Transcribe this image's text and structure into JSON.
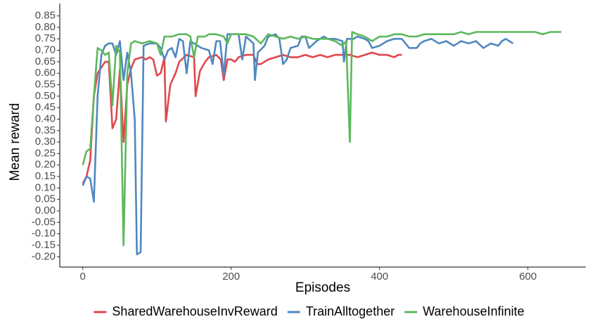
{
  "chart_data": {
    "type": "line",
    "x_label": "Episodes",
    "y_label": "Mean reward",
    "xlim": [
      -31,
      678
    ],
    "ylim": [
      -0.245,
      0.904
    ],
    "xticks": [
      0,
      200,
      400,
      600
    ],
    "yticks": [
      {
        "value": -0.2,
        "label": "-0.20"
      },
      {
        "value": -0.15,
        "label": "-0.15"
      },
      {
        "value": -0.1,
        "label": "-0.10"
      },
      -0.05,
      {
        "value": 0,
        "label": "0.00"
      },
      0.05,
      {
        "value": 0.1,
        "label": "0.10"
      },
      0.15,
      {
        "value": 0.2,
        "label": "0.20"
      },
      0.25,
      {
        "value": 0.3,
        "label": "0.30"
      },
      0.35,
      {
        "value": 0.4,
        "label": "0.40"
      },
      0.45,
      {
        "value": 0.5,
        "label": "0.50"
      },
      0.55,
      {
        "value": 0.6,
        "label": "0.60"
      },
      0.65,
      {
        "value": 0.7,
        "label": "0.70"
      },
      0.75,
      {
        "value": 0.8,
        "label": "0.80"
      },
      0.85
    ],
    "grid": false,
    "legend": "bottom",
    "series": [
      {
        "name": "SharedWarehouseInvReward",
        "color": "#e0474c",
        "x": [
          0,
          5,
          10,
          15,
          20,
          30,
          35,
          40,
          45,
          50,
          55,
          60,
          65,
          70,
          80,
          85,
          90,
          95,
          100,
          105,
          110,
          112,
          118,
          125,
          130,
          140,
          150,
          152,
          158,
          165,
          170,
          180,
          186,
          190,
          195,
          200,
          205,
          210,
          220,
          230,
          235,
          240,
          250,
          260,
          270,
          280,
          290,
          300,
          310,
          320,
          330,
          340,
          350,
          360,
          370,
          380,
          390,
          400,
          410,
          420,
          425,
          430
        ],
        "values": [
          0.12,
          0.15,
          0.22,
          0.5,
          0.6,
          0.65,
          0.65,
          0.36,
          0.4,
          0.62,
          0.3,
          0.55,
          0.62,
          0.66,
          0.67,
          0.66,
          0.67,
          0.66,
          0.59,
          0.6,
          0.67,
          0.39,
          0.55,
          0.6,
          0.65,
          0.68,
          0.67,
          0.5,
          0.61,
          0.65,
          0.67,
          0.68,
          0.66,
          0.57,
          0.66,
          0.66,
          0.65,
          0.67,
          0.68,
          0.68,
          0.64,
          0.64,
          0.66,
          0.67,
          0.68,
          0.67,
          0.67,
          0.68,
          0.67,
          0.68,
          0.67,
          0.68,
          0.68,
          0.68,
          0.67,
          0.68,
          0.69,
          0.68,
          0.68,
          0.67,
          0.68,
          0.68
        ]
      },
      {
        "name": "TrainAlltogether",
        "color": "#4f88bf",
        "x": [
          0,
          5,
          10,
          15,
          20,
          25,
          30,
          35,
          40,
          45,
          50,
          55,
          60,
          65,
          70,
          73,
          78,
          82,
          90,
          100,
          105,
          110,
          115,
          120,
          125,
          130,
          135,
          140,
          145,
          150,
          160,
          170,
          175,
          180,
          185,
          190,
          195,
          205,
          210,
          215,
          220,
          230,
          232,
          236,
          245,
          250,
          260,
          265,
          270,
          275,
          280,
          290,
          295,
          300,
          305,
          315,
          325,
          330,
          340,
          350,
          352,
          356,
          365,
          370,
          380,
          385,
          390,
          400,
          410,
          420,
          430,
          440,
          450,
          455,
          460,
          470,
          480,
          490,
          500,
          505,
          510,
          520,
          530,
          540,
          550,
          560,
          565,
          570,
          580
        ],
        "values": [
          0.11,
          0.15,
          0.14,
          0.04,
          0.5,
          0.68,
          0.72,
          0.73,
          0.73,
          0.68,
          0.74,
          0.57,
          0.69,
          0.6,
          0.4,
          -0.19,
          -0.18,
          0.72,
          0.73,
          0.73,
          0.71,
          0.66,
          0.7,
          0.71,
          0.67,
          0.75,
          0.74,
          0.6,
          0.74,
          0.73,
          0.71,
          0.7,
          0.64,
          0.74,
          0.74,
          0.59,
          0.77,
          0.77,
          0.77,
          0.66,
          0.76,
          0.73,
          0.57,
          0.69,
          0.72,
          0.76,
          0.77,
          0.75,
          0.64,
          0.66,
          0.71,
          0.72,
          0.76,
          0.76,
          0.71,
          0.74,
          0.76,
          0.75,
          0.75,
          0.74,
          0.65,
          0.75,
          0.75,
          0.76,
          0.75,
          0.74,
          0.71,
          0.72,
          0.74,
          0.75,
          0.75,
          0.71,
          0.71,
          0.73,
          0.74,
          0.75,
          0.73,
          0.74,
          0.72,
          0.73,
          0.74,
          0.73,
          0.74,
          0.71,
          0.73,
          0.72,
          0.74,
          0.75,
          0.73
        ]
      },
      {
        "name": "WarehouseInfinite",
        "color": "#5cb85c",
        "x": [
          0,
          5,
          10,
          15,
          20,
          25,
          30,
          35,
          40,
          45,
          50,
          55,
          60,
          65,
          70,
          80,
          90,
          100,
          105,
          110,
          120,
          130,
          140,
          145,
          150,
          155,
          165,
          170,
          180,
          190,
          195,
          200,
          210,
          220,
          230,
          240,
          250,
          260,
          270,
          280,
          290,
          300,
          310,
          320,
          330,
          340,
          350,
          355,
          360,
          363,
          370,
          380,
          390,
          400,
          410,
          420,
          430,
          440,
          450,
          460,
          470,
          480,
          490,
          500,
          510,
          520,
          530,
          540,
          550,
          560,
          570,
          580,
          590,
          600,
          610,
          620,
          630,
          640,
          645
        ],
        "values": [
          0.2,
          0.26,
          0.27,
          0.5,
          0.71,
          0.7,
          0.68,
          0.69,
          0.46,
          0.72,
          0.69,
          -0.15,
          0.6,
          0.73,
          0.74,
          0.73,
          0.74,
          0.73,
          0.68,
          0.76,
          0.76,
          0.77,
          0.77,
          0.76,
          0.67,
          0.76,
          0.76,
          0.77,
          0.77,
          0.76,
          0.73,
          0.77,
          0.77,
          0.77,
          0.76,
          0.73,
          0.77,
          0.76,
          0.75,
          0.76,
          0.75,
          0.76,
          0.75,
          0.75,
          0.75,
          0.74,
          0.72,
          0.74,
          0.3,
          0.78,
          0.77,
          0.76,
          0.74,
          0.76,
          0.76,
          0.77,
          0.77,
          0.76,
          0.76,
          0.77,
          0.77,
          0.77,
          0.77,
          0.77,
          0.78,
          0.77,
          0.78,
          0.78,
          0.78,
          0.78,
          0.78,
          0.78,
          0.78,
          0.78,
          0.78,
          0.77,
          0.78,
          0.78,
          0.78
        ]
      }
    ]
  }
}
